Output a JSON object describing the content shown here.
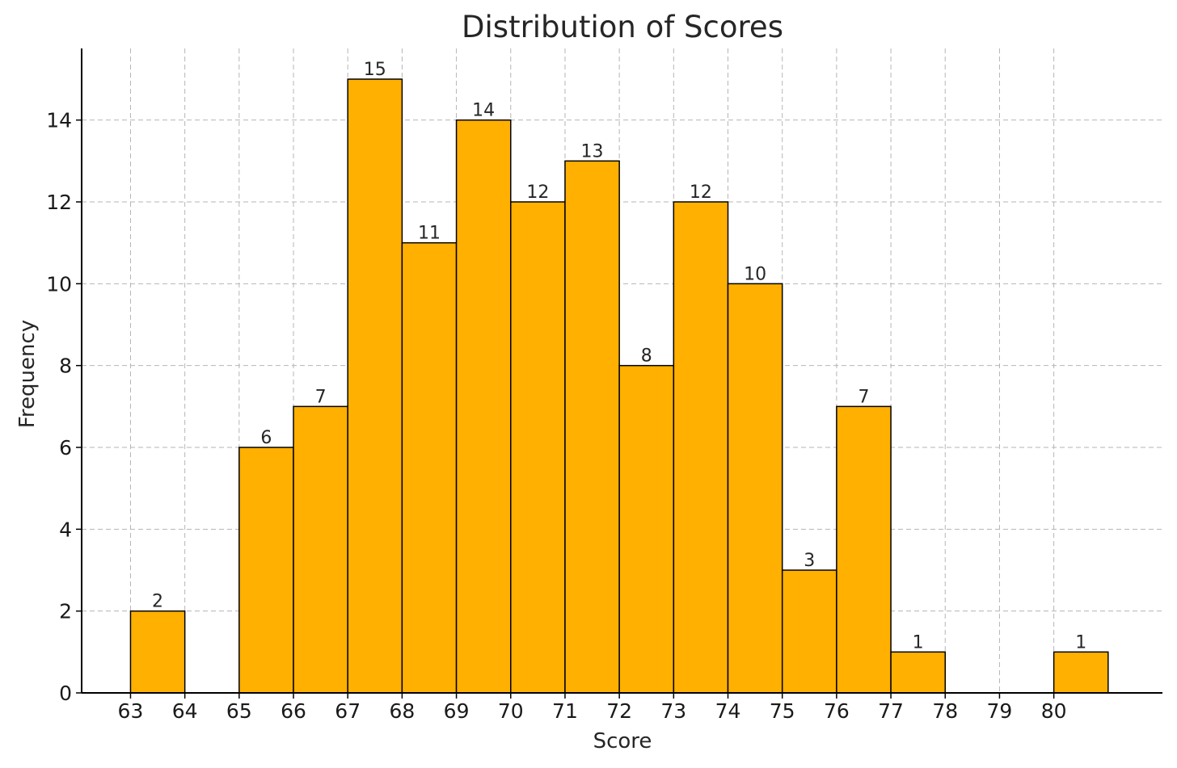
{
  "chart_data": {
    "type": "bar",
    "title": "Distribution of Scores",
    "xlabel": "Score",
    "ylabel": "Frequency",
    "bins": [
      {
        "start": 63,
        "end": 64,
        "count": 2
      },
      {
        "start": 64,
        "end": 65,
        "count": 0
      },
      {
        "start": 65,
        "end": 66,
        "count": 6
      },
      {
        "start": 66,
        "end": 67,
        "count": 7
      },
      {
        "start": 67,
        "end": 68,
        "count": 15
      },
      {
        "start": 68,
        "end": 69,
        "count": 11
      },
      {
        "start": 69,
        "end": 70,
        "count": 14
      },
      {
        "start": 70,
        "end": 71,
        "count": 12
      },
      {
        "start": 71,
        "end": 72,
        "count": 13
      },
      {
        "start": 72,
        "end": 73,
        "count": 8
      },
      {
        "start": 73,
        "end": 74,
        "count": 12
      },
      {
        "start": 74,
        "end": 75,
        "count": 10
      },
      {
        "start": 75,
        "end": 76,
        "count": 3
      },
      {
        "start": 76,
        "end": 77,
        "count": 7
      },
      {
        "start": 77,
        "end": 78,
        "count": 1
      },
      {
        "start": 78,
        "end": 79,
        "count": 0
      },
      {
        "start": 79,
        "end": 80,
        "count": 0
      },
      {
        "start": 80,
        "end": 81,
        "count": 1
      }
    ],
    "xticks": [
      63,
      64,
      65,
      66,
      67,
      68,
      69,
      70,
      71,
      72,
      73,
      74,
      75,
      76,
      77,
      78,
      79,
      80
    ],
    "yticks": [
      0,
      2,
      4,
      6,
      8,
      10,
      12,
      14
    ],
    "xlim": [
      62.1,
      82.0
    ],
    "ylim": [
      0,
      15.75
    ],
    "grid": true,
    "bar_color": "#FFB000",
    "edge_color": "#000000"
  }
}
